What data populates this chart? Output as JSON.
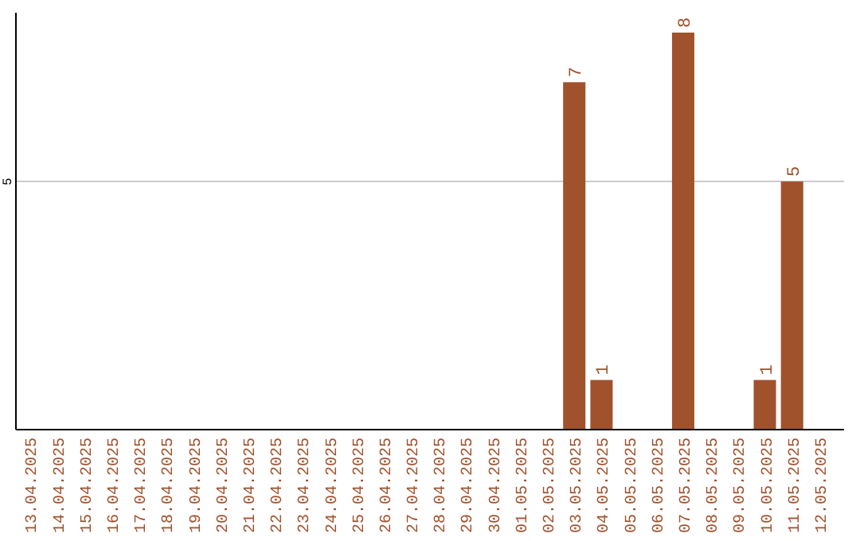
{
  "chart_data": {
    "type": "bar",
    "categories": [
      "13.04.2025",
      "14.04.2025",
      "15.04.2025",
      "16.04.2025",
      "17.04.2025",
      "18.04.2025",
      "19.04.2025",
      "20.04.2025",
      "21.04.2025",
      "22.04.2025",
      "23.04.2025",
      "24.04.2025",
      "25.04.2025",
      "26.04.2025",
      "27.04.2025",
      "28.04.2025",
      "29.04.2025",
      "30.04.2025",
      "01.05.2025",
      "02.05.2025",
      "03.05.2025",
      "04.05.2025",
      "05.05.2025",
      "06.05.2025",
      "07.05.2025",
      "08.05.2025",
      "09.05.2025",
      "10.05.2025",
      "11.05.2025",
      "12.05.2025"
    ],
    "values": [
      null,
      null,
      null,
      null,
      null,
      null,
      null,
      null,
      null,
      null,
      null,
      null,
      null,
      null,
      null,
      null,
      null,
      null,
      null,
      null,
      7,
      1,
      null,
      null,
      8,
      null,
      null,
      1,
      5,
      null
    ],
    "data_labels": true,
    "color": "#a0522d",
    "ylim": [
      0,
      8.4
    ],
    "ref_lines": [
      {
        "axis": "y",
        "value": 5,
        "label": "5",
        "color": "#cccccc"
      }
    ]
  }
}
